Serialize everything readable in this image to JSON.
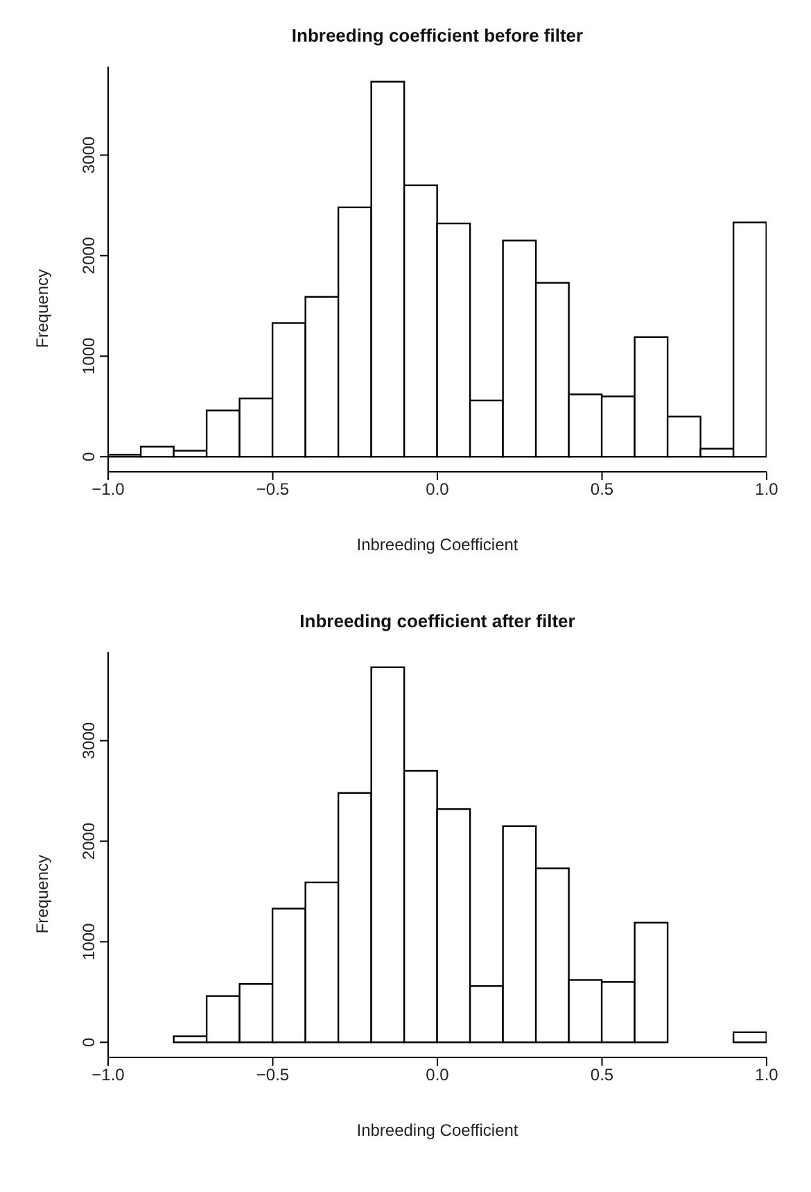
{
  "chart_data": [
    {
      "type": "histogram",
      "title": "Inbreeding coefficient before filter",
      "xlabel": "Inbreeding Coefficient",
      "ylabel": "Frequency",
      "bins": [
        -1.0,
        -0.9,
        -0.8,
        -0.7,
        -0.6,
        -0.5,
        -0.4,
        -0.3,
        -0.2,
        -0.1,
        0.0,
        0.1,
        0.2,
        0.3,
        0.4,
        0.5,
        0.6,
        0.7,
        0.8,
        0.9,
        1.0
      ],
      "values": [
        20,
        100,
        60,
        460,
        580,
        1330,
        1590,
        2480,
        3730,
        2700,
        2320,
        560,
        2150,
        1730,
        620,
        600,
        1190,
        400,
        80,
        2330
      ],
      "color": "#ffffff",
      "xlim": [
        -1.0,
        1.0
      ],
      "xticks": [
        {
          "value": -1,
          "label": "−1.0"
        },
        {
          "value": -0.5,
          "label": "−0.5"
        },
        {
          "value": 0,
          "label": "0.0"
        },
        {
          "value": 0.5,
          "label": "0.5"
        },
        {
          "value": 1,
          "label": "1.0"
        }
      ],
      "ylim": [
        -150,
        3880
      ],
      "yticks": [
        0,
        1000,
        2000,
        3000
      ],
      "grid": false
    },
    {
      "type": "histogram",
      "title": "Inbreeding coefficient after filter",
      "xlabel": "Inbreeding Coefficient",
      "ylabel": "Frequency",
      "bins": [
        -1.0,
        -0.9,
        -0.8,
        -0.7,
        -0.6,
        -0.5,
        -0.4,
        -0.3,
        -0.2,
        -0.1,
        0.0,
        0.1,
        0.2,
        0.3,
        0.4,
        0.5,
        0.6,
        0.7,
        0.8,
        0.9,
        1.0
      ],
      "values": [
        0,
        0,
        60,
        460,
        580,
        1330,
        1590,
        2480,
        3730,
        2700,
        2320,
        560,
        2150,
        1730,
        620,
        600,
        1190,
        0,
        0,
        100
      ],
      "color": "#ffffff",
      "xlim": [
        -1.0,
        1.0
      ],
      "xticks": [
        {
          "value": -1,
          "label": "−1.0"
        },
        {
          "value": -0.5,
          "label": "−0.5"
        },
        {
          "value": 0,
          "label": "0.0"
        },
        {
          "value": 0.5,
          "label": "0.5"
        },
        {
          "value": 1,
          "label": "1.0"
        }
      ],
      "ylim": [
        -150,
        3880
      ],
      "yticks": [
        0,
        1000,
        2000,
        3000
      ],
      "grid": false
    }
  ]
}
